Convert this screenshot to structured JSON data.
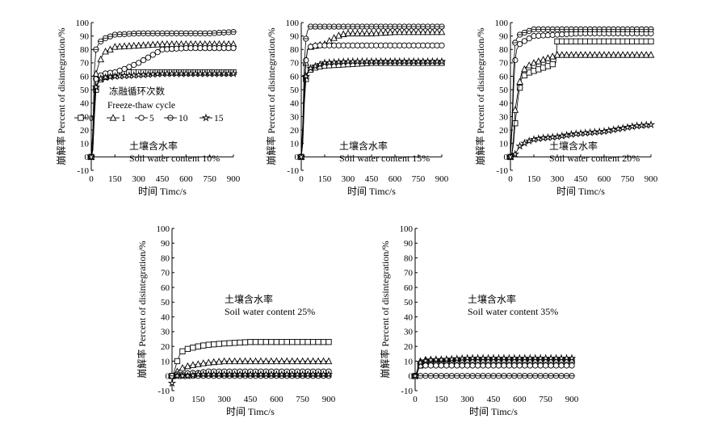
{
  "chart_data": [
    {
      "type": "line",
      "title": "",
      "annotation_cn": "土壤含水率",
      "annotation_en": "Soil water content 10%",
      "xlabel": "时间 Timc/s",
      "ylabel": "崩解率 Percent of disintegration/%",
      "xlim": [
        0,
        900
      ],
      "ylim": [
        -10,
        100
      ],
      "xticks": [
        0,
        150,
        300,
        450,
        600,
        750,
        900
      ],
      "yticks": [
        -10,
        0,
        10,
        20,
        30,
        40,
        50,
        60,
        70,
        80,
        90,
        100
      ],
      "legend": {
        "title_cn": "冻融循环次数",
        "title_en": "Freeze-thaw cycle",
        "placement": "center-left"
      },
      "series": [
        {
          "name": "0",
          "marker": "square",
          "x": [
            0,
            10,
            20,
            30,
            50,
            80,
            150,
            200,
            300,
            400,
            500,
            600,
            750,
            900
          ],
          "y": [
            0,
            5,
            30,
            50,
            57,
            59,
            62,
            63,
            63,
            63,
            63,
            63,
            63,
            63
          ]
        },
        {
          "name": "1",
          "marker": "triangle",
          "x": [
            0,
            10,
            20,
            30,
            50,
            80,
            120,
            150,
            300,
            450,
            600,
            750,
            900
          ],
          "y": [
            0,
            10,
            45,
            62,
            70,
            78,
            80,
            82,
            83,
            84,
            84,
            84,
            84
          ]
        },
        {
          "name": "5",
          "marker": "circle",
          "x": [
            0,
            10,
            20,
            30,
            50,
            80,
            150,
            200,
            300,
            450,
            600,
            750,
            900
          ],
          "y": [
            0,
            10,
            40,
            58,
            60,
            62,
            63,
            65,
            70,
            80,
            81,
            81,
            81
          ]
        },
        {
          "name": "10",
          "marker": "circle-bar",
          "x": [
            0,
            10,
            20,
            30,
            50,
            80,
            150,
            300,
            450,
            600,
            750,
            900
          ],
          "y": [
            0,
            20,
            65,
            80,
            85,
            88,
            91,
            92,
            92,
            92,
            92,
            93
          ]
        },
        {
          "name": "15",
          "marker": "star",
          "x": [
            0,
            10,
            20,
            30,
            50,
            80,
            150,
            300,
            450,
            600,
            750,
            900
          ],
          "y": [
            0,
            5,
            35,
            52,
            58,
            59,
            60,
            61,
            62,
            62,
            62,
            62
          ]
        }
      ]
    },
    {
      "type": "line",
      "title": "",
      "annotation_cn": "土壤含水率",
      "annotation_en": "Soil water content 15%",
      "xlabel": "时间 Timc/s",
      "ylabel": "崩解率 Percent of disintegration/%",
      "xlim": [
        0,
        900
      ],
      "ylim": [
        -10,
        100
      ],
      "xticks": [
        0,
        150,
        300,
        450,
        600,
        750,
        900
      ],
      "yticks": [
        -10,
        0,
        10,
        20,
        30,
        40,
        50,
        60,
        70,
        80,
        90,
        100
      ],
      "series": [
        {
          "name": "0",
          "marker": "square",
          "x": [
            0,
            10,
            20,
            30,
            40,
            60,
            100,
            150,
            300,
            450,
            600,
            750,
            900
          ],
          "y": [
            0,
            10,
            40,
            58,
            62,
            65,
            67,
            68,
            69,
            70,
            70,
            70,
            70
          ]
        },
        {
          "name": "1",
          "marker": "triangle",
          "x": [
            0,
            10,
            20,
            30,
            40,
            60,
            100,
            150,
            200,
            250,
            300,
            450,
            600,
            750,
            900
          ],
          "y": [
            0,
            15,
            50,
            70,
            80,
            82,
            83,
            84,
            88,
            91,
            92,
            92,
            93,
            93,
            93
          ]
        },
        {
          "name": "5",
          "marker": "circle",
          "x": [
            0,
            10,
            20,
            30,
            40,
            60,
            100,
            150,
            300,
            450,
            600,
            750,
            900
          ],
          "y": [
            0,
            20,
            55,
            72,
            80,
            82,
            83,
            83,
            83,
            83,
            83,
            83,
            83
          ]
        },
        {
          "name": "10",
          "marker": "circle-bar",
          "x": [
            0,
            10,
            20,
            30,
            40,
            60,
            100,
            150,
            300,
            450,
            600,
            750,
            900
          ],
          "y": [
            0,
            25,
            70,
            88,
            94,
            97,
            97,
            97,
            97,
            97,
            97,
            97,
            97
          ]
        },
        {
          "name": "15",
          "marker": "star",
          "x": [
            0,
            10,
            20,
            30,
            40,
            60,
            100,
            150,
            300,
            450,
            600,
            750,
            900
          ],
          "y": [
            0,
            12,
            45,
            60,
            63,
            66,
            68,
            70,
            71,
            71,
            71,
            71,
            71
          ]
        }
      ]
    },
    {
      "type": "line",
      "title": "",
      "annotation_cn": "土壤含水率",
      "annotation_en": "Soil water content 20%",
      "xlabel": "时间 Timc/s",
      "ylabel": "崩解率 Percent of disintegration/%",
      "xlim": [
        0,
        900
      ],
      "ylim": [
        -10,
        100
      ],
      "xticks": [
        0,
        150,
        300,
        450,
        600,
        750,
        900
      ],
      "yticks": [
        -10,
        0,
        10,
        20,
        30,
        40,
        50,
        60,
        70,
        80,
        90,
        100
      ],
      "series": [
        {
          "name": "0",
          "marker": "square",
          "x": [
            0,
            10,
            20,
            30,
            50,
            70,
            100,
            150,
            200,
            250,
            290,
            300,
            450,
            600,
            750,
            900
          ],
          "y": [
            0,
            2,
            10,
            25,
            45,
            58,
            62,
            64,
            66,
            68,
            70,
            86,
            86,
            86,
            86,
            86
          ]
        },
        {
          "name": "1",
          "marker": "triangle",
          "x": [
            0,
            10,
            20,
            30,
            50,
            70,
            100,
            150,
            200,
            250,
            300,
            450,
            600,
            750,
            900
          ],
          "y": [
            0,
            3,
            15,
            35,
            50,
            62,
            67,
            70,
            72,
            74,
            76,
            76,
            76,
            76,
            76
          ]
        },
        {
          "name": "5",
          "marker": "circle",
          "x": [
            0,
            10,
            20,
            30,
            40,
            60,
            100,
            150,
            300,
            450,
            600,
            750,
            900
          ],
          "y": [
            0,
            20,
            50,
            72,
            80,
            84,
            87,
            90,
            91,
            92,
            92,
            92,
            92
          ]
        },
        {
          "name": "10",
          "marker": "circle-bar",
          "x": [
            0,
            10,
            20,
            30,
            40,
            60,
            100,
            150,
            300,
            450,
            600,
            750,
            900
          ],
          "y": [
            0,
            25,
            65,
            85,
            88,
            91,
            93,
            95,
            95,
            95,
            95,
            95,
            95
          ]
        },
        {
          "name": "15",
          "marker": "star",
          "x": [
            0,
            10,
            20,
            30,
            60,
            100,
            150,
            200,
            300,
            400,
            500,
            600,
            700,
            800,
            900
          ],
          "y": [
            0,
            0,
            1,
            2,
            8,
            11,
            13,
            14,
            15,
            17,
            18,
            19,
            21,
            23,
            24
          ]
        }
      ]
    },
    {
      "type": "line",
      "title": "",
      "annotation_cn": "土壤含水率",
      "annotation_en": "Soil water content 25%",
      "xlabel": "时间 Timc/s",
      "ylabel": "崩解率 Percent of disintegration/%",
      "xlim": [
        0,
        900
      ],
      "ylim": [
        -10,
        100
      ],
      "xticks": [
        0,
        150,
        300,
        450,
        600,
        750,
        900
      ],
      "yticks": [
        -10,
        0,
        10,
        20,
        30,
        40,
        50,
        60,
        70,
        80,
        90,
        100
      ],
      "series": [
        {
          "name": "0",
          "marker": "square",
          "x": [
            0,
            10,
            20,
            30,
            50,
            80,
            150,
            200,
            300,
            450,
            600,
            750,
            900
          ],
          "y": [
            0,
            2,
            6,
            10,
            16,
            18,
            20,
            21,
            22,
            23,
            23,
            23,
            23
          ]
        },
        {
          "name": "1",
          "marker": "triangle",
          "x": [
            0,
            10,
            20,
            30,
            50,
            100,
            150,
            200,
            300,
            450,
            600,
            750,
            900
          ],
          "y": [
            0,
            1,
            2,
            3,
            5,
            7,
            8,
            9,
            10,
            10,
            10,
            10,
            10
          ]
        },
        {
          "name": "5",
          "marker": "circle",
          "x": [
            0,
            30,
            60,
            100,
            150,
            200,
            300,
            450,
            600,
            750,
            900
          ],
          "y": [
            0,
            1,
            1,
            2,
            2,
            3,
            3,
            3,
            3,
            3,
            3
          ]
        },
        {
          "name": "10",
          "marker": "circle-bar",
          "x": [
            0,
            30,
            60,
            100,
            150,
            200,
            300,
            450,
            600,
            750,
            900
          ],
          "y": [
            0,
            0,
            0,
            0,
            0,
            0,
            0,
            0,
            0,
            0,
            0
          ]
        },
        {
          "name": "15",
          "marker": "star",
          "x": [
            0,
            10,
            30,
            60,
            100,
            150,
            200,
            300,
            450,
            600,
            750,
            900
          ],
          "y": [
            -5,
            0,
            0,
            0,
            0,
            1,
            1,
            1,
            1,
            1,
            1,
            1
          ]
        }
      ]
    },
    {
      "type": "line",
      "title": "",
      "annotation_cn": "土壤含水率",
      "annotation_en": "Soil water content 35%",
      "xlabel": "时间 Timc/s",
      "ylabel": "崩解率 Percent of disintegration/%",
      "xlim": [
        0,
        900
      ],
      "ylim": [
        -10,
        100
      ],
      "xticks": [
        0,
        150,
        300,
        450,
        600,
        750,
        900
      ],
      "yticks": [
        -10,
        0,
        10,
        20,
        30,
        40,
        50,
        60,
        70,
        80,
        90,
        100
      ],
      "series": [
        {
          "name": "0",
          "marker": "square",
          "x": [
            0,
            10,
            20,
            30,
            50,
            100,
            150,
            300,
            450,
            600,
            750,
            900
          ],
          "y": [
            0,
            2,
            5,
            7,
            8,
            9,
            10,
            10,
            10,
            10,
            10,
            10
          ]
        },
        {
          "name": "1",
          "marker": "triangle",
          "x": [
            0,
            10,
            20,
            30,
            50,
            100,
            150,
            300,
            450,
            600,
            750,
            900
          ],
          "y": [
            0,
            3,
            7,
            10,
            11,
            11,
            11,
            11,
            11,
            11,
            11,
            11
          ]
        },
        {
          "name": "5",
          "marker": "circle",
          "x": [
            0,
            10,
            20,
            30,
            50,
            100,
            150,
            300,
            450,
            600,
            750,
            900
          ],
          "y": [
            0,
            1,
            5,
            7,
            7,
            7,
            7,
            7,
            7,
            7,
            7,
            7
          ]
        },
        {
          "name": "10",
          "marker": "circle-bar",
          "x": [
            0,
            10,
            20,
            30,
            50,
            100,
            150,
            300,
            450,
            600,
            750,
            900
          ],
          "y": [
            0,
            0,
            0,
            0,
            0,
            0,
            0,
            0,
            0,
            0,
            0,
            0
          ]
        },
        {
          "name": "15",
          "marker": "star",
          "x": [
            0,
            10,
            20,
            30,
            50,
            100,
            150,
            300,
            450,
            600,
            750,
            900
          ],
          "y": [
            0,
            2,
            6,
            9,
            10,
            11,
            11,
            12,
            12,
            12,
            12,
            12
          ]
        }
      ]
    }
  ]
}
